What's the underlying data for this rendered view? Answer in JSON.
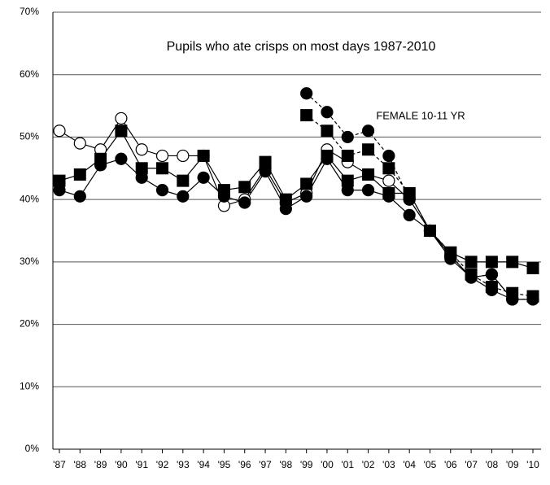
{
  "chart_data": {
    "type": "line",
    "title": "Pupils who ate crisps on most days 1987-2010",
    "annotation": "FEMALE 10-11 YR",
    "categories": [
      "'87",
      "'88",
      "'89",
      "'90",
      "'91",
      "'92",
      "'93",
      "'94",
      "'95",
      "'96",
      "'97",
      "'98",
      "'99",
      "'00",
      "'01",
      "'02",
      "'03",
      "'04",
      "'05",
      "'06",
      "'07",
      "'08",
      "'09",
      "'10"
    ],
    "ylim": [
      0,
      70
    ],
    "yticks": [
      {
        "value": 0,
        "label": "0%"
      },
      {
        "value": 10,
        "label": "10%"
      },
      {
        "value": 20,
        "label": "20%"
      },
      {
        "value": 30,
        "label": "30%"
      },
      {
        "value": 40,
        "label": "40%"
      },
      {
        "value": 50,
        "label": "50%"
      },
      {
        "value": 60,
        "label": "60%"
      },
      {
        "value": 70,
        "label": "70%"
      }
    ],
    "grid": true,
    "series": [
      {
        "color": "#000000",
        "marker": "circle",
        "marker_fill": "#ffffff",
        "dashed": false,
        "values": [
          51,
          49,
          48,
          53,
          48,
          47,
          47,
          47,
          39,
          40,
          45,
          39.5,
          41,
          48,
          46,
          44,
          43,
          40,
          35,
          31,
          27.5,
          28,
          24,
          24
        ]
      },
      {
        "color": "#000000",
        "marker": "square",
        "marker_fill": "#000000",
        "dashed": false,
        "values": [
          43,
          44,
          46.5,
          51,
          45,
          45,
          43,
          47,
          41.5,
          42,
          46,
          40,
          42.5,
          47,
          43,
          44,
          41,
          41,
          35,
          31.5,
          30,
          30,
          30,
          29
        ]
      },
      {
        "color": "#000000",
        "marker": "circle",
        "marker_fill": "#000000",
        "dashed": false,
        "values": [
          41.5,
          40.5,
          45.5,
          46.5,
          43.5,
          41.5,
          40.5,
          43.5,
          40.5,
          39.5,
          44.5,
          38.5,
          40.5,
          46.5,
          41.5,
          41.5,
          40.5,
          37.5,
          35,
          30.5,
          27.5,
          25.5,
          24,
          null
        ]
      },
      {
        "color": "#000000",
        "marker": "circle",
        "marker_fill": "#000000",
        "dashed": true,
        "values": [
          null,
          null,
          null,
          null,
          null,
          null,
          null,
          null,
          null,
          null,
          null,
          null,
          57,
          54,
          50,
          51,
          47,
          40,
          35,
          31,
          27.5,
          28,
          24,
          24
        ]
      },
      {
        "color": "#000000",
        "marker": "square",
        "marker_fill": "#000000",
        "dashed": true,
        "values": [
          null,
          null,
          null,
          null,
          null,
          null,
          null,
          null,
          null,
          null,
          null,
          null,
          53.5,
          51,
          47,
          48,
          45,
          41,
          35,
          31.5,
          28,
          26,
          25,
          24.5
        ]
      }
    ]
  }
}
